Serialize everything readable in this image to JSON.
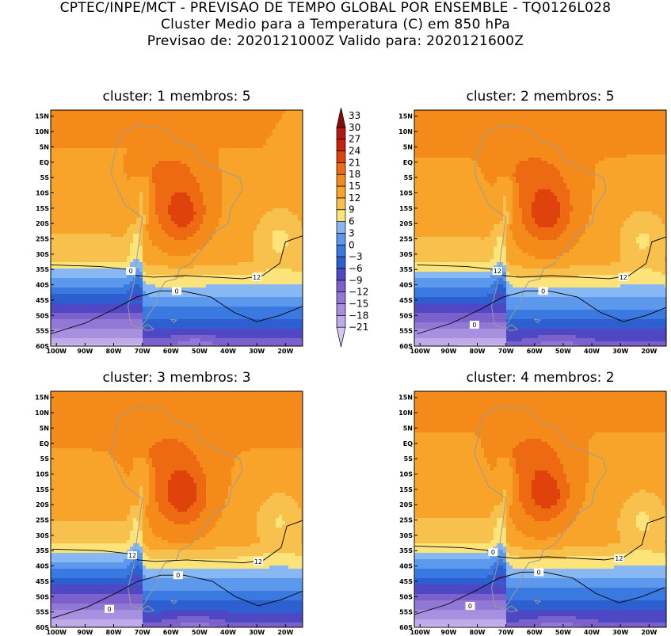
{
  "header": {
    "line1": "CPTEC/INPE/MCT - PREVISAO DE TEMPO GLOBAL POR ENSEMBLE - TQ0126L028",
    "line2": "Cluster Medio para a Temperatura (C) em 850 hPa",
    "line3": "Previsao de: 2020121000Z   Valido para: 2020121600Z"
  },
  "colors": {
    "levels": [
      -21,
      -18,
      -15,
      -12,
      -9,
      -6,
      -3,
      0,
      3,
      6,
      9,
      12,
      15,
      18,
      21,
      24,
      27,
      30,
      33
    ],
    "fills": [
      "#d6c8f0",
      "#c0aaea",
      "#a890e0",
      "#9278d6",
      "#7c60cc",
      "#4f48c4",
      "#2e5fd0",
      "#3a7ae0",
      "#5c98ec",
      "#88b8f4",
      "#fce37a",
      "#f8c04c",
      "#f8a42a",
      "#f48a1a",
      "#ee6a12",
      "#e0420c",
      "#c8200a",
      "#b01810",
      "#8a0a0a"
    ]
  },
  "chart_data": [
    {
      "type": "heatmap",
      "title": "cluster: 1   membros: 5",
      "xticks": [
        "100W",
        "90W",
        "80W",
        "70W",
        "60W",
        "50W",
        "40W",
        "30W",
        "20W"
      ],
      "yticks": [
        "15N",
        "10N",
        "5N",
        "EQ",
        "5S",
        "10S",
        "15S",
        "20S",
        "25S",
        "30S",
        "35S",
        "40S",
        "45S",
        "50S",
        "55S",
        "60S"
      ],
      "contour_labels": [
        "12",
        "0",
        "0"
      ]
    },
    {
      "type": "heatmap",
      "title": "cluster: 2   membros: 5",
      "xticks": [
        "100W",
        "90W",
        "80W",
        "70W",
        "60W",
        "50W",
        "40W",
        "30W",
        "20W"
      ],
      "yticks": [
        "15N",
        "10N",
        "5N",
        "EQ",
        "5S",
        "10S",
        "15S",
        "20S",
        "25S",
        "30S",
        "35S",
        "40S",
        "45S",
        "50S",
        "55S",
        "60S"
      ],
      "contour_labels": [
        "12",
        "12",
        "0",
        "0"
      ]
    },
    {
      "type": "heatmap",
      "title": "cluster: 3   membros: 3",
      "xticks": [
        "100W",
        "90W",
        "80W",
        "70W",
        "60W",
        "50W",
        "40W",
        "30W",
        "20W"
      ],
      "yticks": [
        "15N",
        "10N",
        "5N",
        "EQ",
        "5S",
        "10S",
        "15S",
        "20S",
        "25S",
        "30S",
        "35S",
        "40S",
        "45S",
        "50S",
        "55S",
        "60S"
      ],
      "contour_labels": [
        "12",
        "12",
        "0",
        "0"
      ]
    },
    {
      "type": "heatmap",
      "title": "cluster: 4   membros: 2",
      "xticks": [
        "100W",
        "90W",
        "80W",
        "70W",
        "60W",
        "50W",
        "40W",
        "30W",
        "20W"
      ],
      "yticks": [
        "15N",
        "10N",
        "5N",
        "EQ",
        "5S",
        "10S",
        "15S",
        "20S",
        "25S",
        "30S",
        "35S",
        "40S",
        "45S",
        "50S",
        "55S",
        "60S"
      ],
      "contour_labels": [
        "12",
        "0",
        "0",
        "0"
      ]
    }
  ]
}
